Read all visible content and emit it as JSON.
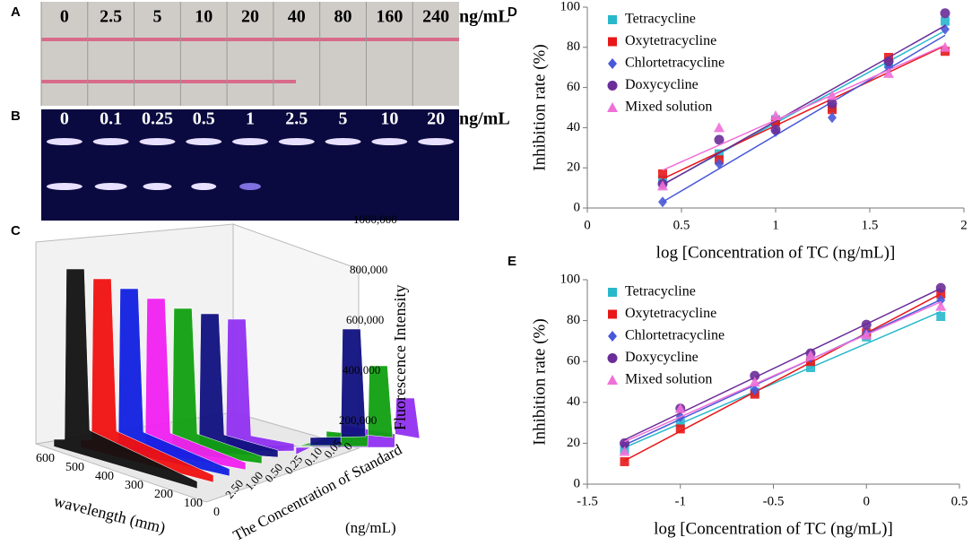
{
  "panel_labels": [
    "A",
    "B",
    "C",
    "D",
    "E"
  ],
  "strip_a": {
    "labels": [
      "0",
      "2.5",
      "5",
      "10",
      "20",
      "40",
      "80",
      "160",
      "240"
    ],
    "unit": "ng/mL"
  },
  "strip_b": {
    "labels": [
      "0",
      "0.1",
      "0.25",
      "0.5",
      "1",
      "2.5",
      "5",
      "10",
      "20"
    ],
    "unit": "ng/mL"
  },
  "panel_c": {
    "x_label": "wavelength (mm)",
    "x_ticks": [
      "600",
      "500",
      "400",
      "300",
      "200",
      "100",
      "0"
    ],
    "depth_label": [
      "The Concentration of Standard",
      "(ng/mL)"
    ],
    "depth_ticks": [
      "2.50",
      "1.00",
      "0.50",
      "0.25",
      "0.10",
      "0.05",
      "0"
    ],
    "z_label": "Fluorescence Intensity",
    "z_ticks": [
      "200,000",
      "400,000",
      "600,000",
      "800,000",
      "1000,000"
    ]
  },
  "chart_data": [
    {
      "type": "scatter",
      "x_label": "log [Concentration of TC (ng/mL)]",
      "y_label": "Inhibition rate (%)",
      "xlim": [
        0,
        2
      ],
      "xticks": [
        0,
        0.5,
        1,
        1.5,
        2
      ],
      "ylim": [
        0,
        100
      ],
      "yticks": [
        0,
        20,
        40,
        60,
        80,
        100
      ],
      "x": [
        0.4,
        0.7,
        1,
        1.3,
        1.6,
        1.9
      ],
      "series": [
        {
          "name": "Tetracycline",
          "color": "#28b8cc",
          "marker": "square",
          "values": [
            14,
            27,
            44,
            50,
            72,
            93
          ]
        },
        {
          "name": "Oxytetracycline",
          "color": "#e81818",
          "marker": "square",
          "values": [
            17,
            24,
            43,
            49,
            75,
            78
          ]
        },
        {
          "name": "Chlortetracycline",
          "color": "#4858d8",
          "marker": "diamond",
          "values": [
            3,
            22,
            38,
            45,
            70,
            89
          ]
        },
        {
          "name": "Doxycycline",
          "color": "#6a2c98",
          "marker": "circle",
          "values": [
            12,
            34,
            39,
            52,
            73,
            97
          ]
        },
        {
          "name": "Mixed solution",
          "color": "#f070d8",
          "marker": "triangle",
          "values": [
            11,
            40,
            46,
            56,
            67,
            80
          ]
        }
      ]
    },
    {
      "type": "scatter",
      "x_label": "log [Concentration of TC (ng/mL)]",
      "y_label": "Inhibition rate (%)",
      "xlim": [
        -1.5,
        0.5
      ],
      "xticks": [
        -1.5,
        -1,
        -0.5,
        0,
        0.5
      ],
      "ylim": [
        0,
        100
      ],
      "yticks": [
        0,
        20,
        40,
        60,
        80,
        100
      ],
      "x": [
        -1.3,
        -1,
        -0.6,
        -0.3,
        0,
        0.4
      ],
      "series": [
        {
          "name": "Tetracycline",
          "color": "#28b8cc",
          "marker": "square",
          "values": [
            17,
            30,
            45,
            57,
            72,
            82
          ]
        },
        {
          "name": "Oxytetracycline",
          "color": "#e81818",
          "marker": "square",
          "values": [
            11,
            27,
            44,
            60,
            74,
            93
          ]
        },
        {
          "name": "Chlortetracycline",
          "color": "#4858d8",
          "marker": "diamond",
          "values": [
            19,
            33,
            46,
            62,
            74,
            90
          ]
        },
        {
          "name": "Doxycycline",
          "color": "#6a2c98",
          "marker": "circle",
          "values": [
            20,
            37,
            53,
            64,
            78,
            96
          ]
        },
        {
          "name": "Mixed solution",
          "color": "#f070d8",
          "marker": "triangle",
          "values": [
            16,
            37,
            50,
            63,
            73,
            87
          ]
        }
      ]
    }
  ]
}
